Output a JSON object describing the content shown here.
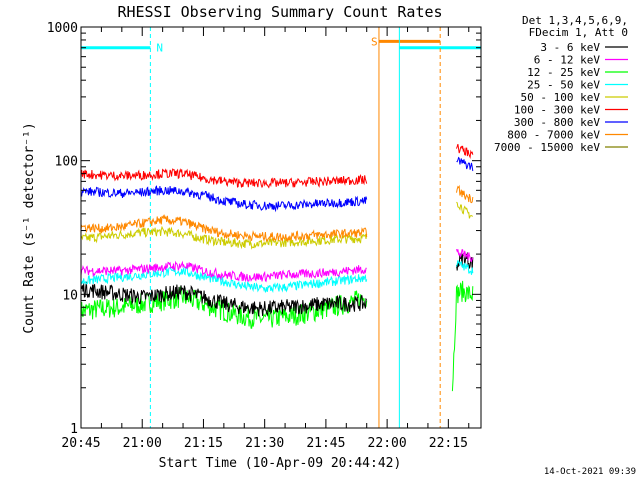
{
  "chart_data": {
    "type": "line",
    "title": "RHESSI Observing Summary Count Rates",
    "xlabel": "Start Time (10-Apr-09 20:44:42)",
    "ylabel": "Count Rate (s⁻¹ detector⁻¹)",
    "xlim": [
      "20:45",
      "22:23"
    ],
    "ylim": [
      1,
      1000
    ],
    "yscale": "log",
    "x_tick_labels": [
      "20:45",
      "21:00",
      "21:15",
      "21:30",
      "21:45",
      "22:00",
      "22:15"
    ],
    "y_tick_labels": [
      "1",
      "10",
      "100",
      "1000"
    ],
    "legend_header": [
      "Det 1,3,4,5,6,9,",
      "FDecim 1, Att 0"
    ],
    "legend_placement": "right",
    "series": [
      {
        "name": "3 - 6 keV",
        "color": "#000000",
        "segments": [
          {
            "x": [
              "20:45",
              "20:50",
              "20:55",
              "21:00",
              "21:05",
              "21:10",
              "21:15",
              "21:20",
              "21:25",
              "21:30",
              "21:35",
              "21:40",
              "21:45",
              "21:50",
              "21:55"
            ],
            "y": [
              11,
              10.5,
              10,
              9.5,
              10,
              10.5,
              9.5,
              8.5,
              8,
              7.8,
              8,
              8.2,
              8.5,
              8.5,
              8.5
            ]
          },
          {
            "x": [
              "22:17",
              "22:18",
              "22:19",
              "22:20",
              "22:21"
            ],
            "y": [
              17,
              18,
              19,
              18,
              17
            ]
          }
        ]
      },
      {
        "name": "6 - 12 keV",
        "color": "#ff00ff",
        "segments": [
          {
            "x": [
              "20:45",
              "20:50",
              "20:55",
              "21:00",
              "21:05",
              "21:10",
              "21:15",
              "21:20",
              "21:25",
              "21:30",
              "21:35",
              "21:40",
              "21:45",
              "21:50",
              "21:55"
            ],
            "y": [
              15,
              15,
              15,
              15.5,
              16,
              16.5,
              15,
              14,
              13.5,
              13.5,
              14,
              14.2,
              14.5,
              15,
              15.5
            ]
          },
          {
            "x": [
              "22:17",
              "22:18",
              "22:19",
              "22:20",
              "22:21"
            ],
            "y": [
              21,
              20,
              20,
              19,
              19
            ]
          }
        ]
      },
      {
        "name": "12 - 25 keV",
        "color": "#00ff00",
        "segments": [
          {
            "x": [
              "20:45",
              "20:50",
              "20:55",
              "21:00",
              "21:05",
              "21:10",
              "21:15",
              "21:20",
              "21:25",
              "21:30",
              "21:35",
              "21:40",
              "21:45",
              "21:50",
              "21:55"
            ],
            "y": [
              7.5,
              7.8,
              8,
              8.5,
              9,
              9.5,
              8.5,
              7.5,
              6.8,
              6.5,
              6.8,
              7.2,
              7.8,
              8.5,
              9.5
            ]
          },
          {
            "x": [
              "22:16",
              "22:17",
              "22:18",
              "22:19",
              "22:20",
              "22:21"
            ],
            "y": [
              2,
              10,
              10.5,
              10.5,
              10,
              10
            ]
          }
        ]
      },
      {
        "name": "25 - 50 keV",
        "color": "#00ffff",
        "segments": [
          {
            "x": [
              "20:45",
              "20:50",
              "20:55",
              "21:00",
              "21:05",
              "21:10",
              "21:15",
              "21:20",
              "21:25",
              "21:30",
              "21:35",
              "21:40",
              "21:45",
              "21:50",
              "21:55"
            ],
            "y": [
              12.5,
              13,
              13.5,
              14,
              14.5,
              15,
              13.5,
              12.5,
              11.5,
              11,
              11.3,
              11.8,
              12.3,
              12.8,
              13.3
            ]
          },
          {
            "x": [
              "22:17",
              "22:18",
              "22:19",
              "22:20",
              "22:21"
            ],
            "y": [
              17,
              16.5,
              16,
              15.5,
              15
            ]
          }
        ]
      },
      {
        "name": "50 - 100 keV",
        "color": "#cccc00",
        "segments": [
          {
            "x": [
              "20:45",
              "20:50",
              "20:55",
              "21:00",
              "21:05",
              "21:10",
              "21:15",
              "21:20",
              "21:25",
              "21:30",
              "21:35",
              "21:40",
              "21:45",
              "21:50",
              "21:55"
            ],
            "y": [
              26,
              27,
              28,
              29,
              29.5,
              28.5,
              26,
              24.5,
              24,
              24,
              24.5,
              25,
              25.5,
              26,
              26.5
            ]
          },
          {
            "x": [
              "22:17",
              "22:18",
              "22:19",
              "22:20",
              "22:21"
            ],
            "y": [
              50,
              46,
              42,
              40,
              38
            ]
          }
        ]
      },
      {
        "name": "100 - 300 keV",
        "color": "#ff0000",
        "segments": [
          {
            "x": [
              "20:45",
              "20:50",
              "20:55",
              "21:00",
              "21:05",
              "21:10",
              "21:15",
              "21:20",
              "21:25",
              "21:30",
              "21:35",
              "21:40",
              "21:45",
              "21:50",
              "21:55"
            ],
            "y": [
              80,
              78,
              77,
              78,
              80,
              80,
              74,
              70,
              68,
              68,
              68,
              69,
              70,
              71,
              72
            ]
          },
          {
            "x": [
              "22:17",
              "22:18",
              "22:19",
              "22:20",
              "22:21"
            ],
            "y": [
              125,
              122,
              118,
              115,
              112
            ]
          }
        ]
      },
      {
        "name": "300 - 800 keV",
        "color": "#0000ff",
        "segments": [
          {
            "x": [
              "20:45",
              "20:50",
              "20:55",
              "21:00",
              "21:05",
              "21:10",
              "21:15",
              "21:20",
              "21:25",
              "21:30",
              "21:35",
              "21:40",
              "21:45",
              "21:50",
              "21:55"
            ],
            "y": [
              59,
              58,
              57,
              58,
              60,
              59,
              55,
              50,
              47,
              46,
              46,
              47,
              48,
              49,
              50
            ]
          },
          {
            "x": [
              "22:17",
              "22:18",
              "22:19",
              "22:20",
              "22:21"
            ],
            "y": [
              100,
              98,
              95,
              92,
              90
            ]
          }
        ]
      },
      {
        "name": "800 - 7000 keV",
        "color": "#ff8800",
        "segments": [
          {
            "x": [
              "20:45",
              "20:50",
              "20:55",
              "21:00",
              "21:05",
              "21:10",
              "21:15",
              "21:20",
              "21:25",
              "21:30",
              "21:35",
              "21:40",
              "21:45",
              "21:50",
              "21:55"
            ],
            "y": [
              32,
              31,
              32,
              34,
              36,
              35,
              31,
              28.5,
              27.5,
              27,
              27,
              27.5,
              28,
              28.5,
              29
            ]
          },
          {
            "x": [
              "22:17",
              "22:18",
              "22:19",
              "22:20",
              "22:21"
            ],
            "y": [
              62,
              58,
              55,
              53,
              52
            ]
          }
        ]
      },
      {
        "name": "7000 - 15000 keV",
        "color": "#808000",
        "segments": []
      }
    ],
    "annotations": [
      {
        "label": "N",
        "color": "#00ffff",
        "x_start": "20:45",
        "x_end": "21:02",
        "y": 700
      },
      {
        "label": "S",
        "color": "#ff8800",
        "x_start": "21:58",
        "x_end": "22:13",
        "y": 780
      },
      {
        "label": "",
        "color": "#00ffff",
        "x_start": "22:03",
        "x_end": "22:23",
        "y": 700
      }
    ],
    "vlines": [
      {
        "x": "20:45",
        "color": "#00ffff",
        "style": "solid"
      },
      {
        "x": "21:02",
        "color": "#00ffff",
        "style": "dashed"
      },
      {
        "x": "21:58",
        "color": "#ff8800",
        "style": "solid"
      },
      {
        "x": "22:03",
        "color": "#00ffff",
        "style": "solid"
      },
      {
        "x": "22:13",
        "color": "#ff8800",
        "style": "dashed"
      },
      {
        "x": "22:23",
        "color": "#00ffff",
        "style": "dashed"
      }
    ]
  },
  "footer": {
    "timestamp": "14-Oct-2021 09:39"
  }
}
